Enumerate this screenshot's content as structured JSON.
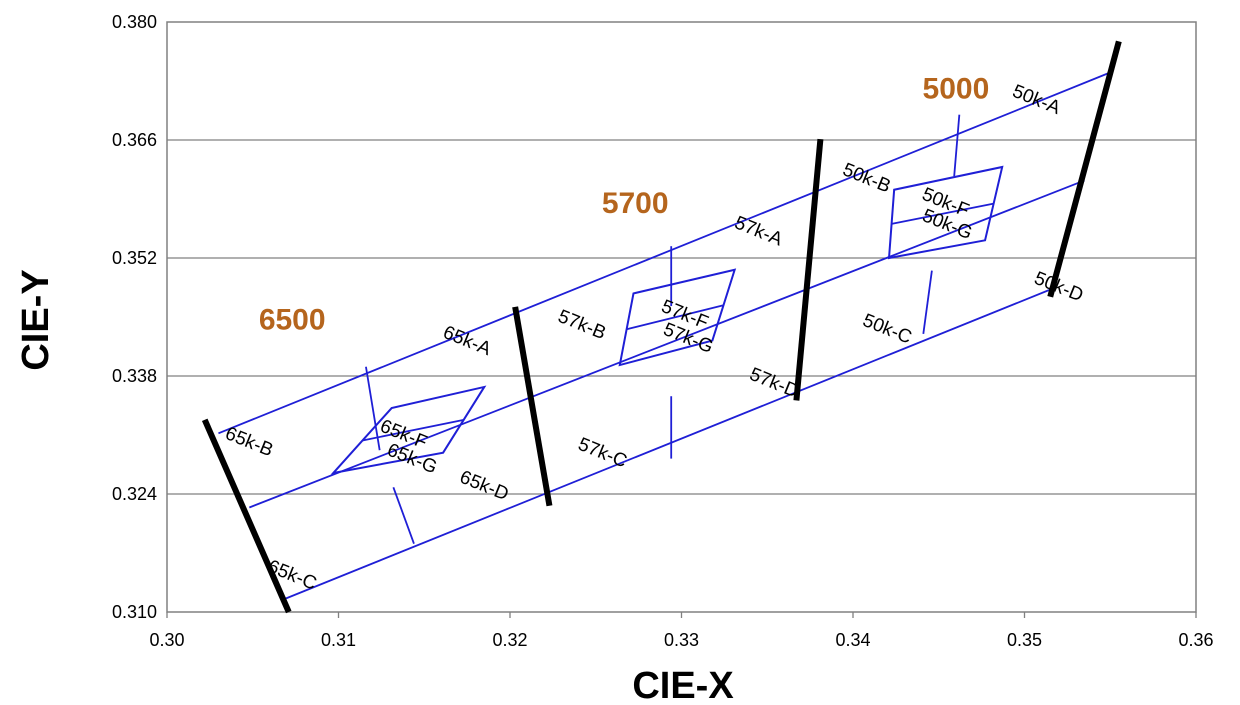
{
  "chart_data": {
    "type": "scatter",
    "xlabel": "CIE-X",
    "ylabel": "CIE-Y",
    "xlim": [
      0.3,
      0.36
    ],
    "ylim": [
      0.31,
      0.38
    ],
    "x_ticks": [
      "0.30",
      "0.31",
      "0.32",
      "0.33",
      "0.34",
      "0.35",
      "0.36"
    ],
    "y_ticks": [
      "0.380",
      "0.366",
      "0.352",
      "0.338",
      "0.324",
      "0.310"
    ],
    "grid": "horizontal",
    "colors": {
      "bins": "#1f1fd6",
      "boundaries": "#000000",
      "cct_labels": "#b5651d"
    },
    "cct_labels": [
      {
        "text": "6500",
        "x": 0.3073,
        "y": 0.3447
      },
      {
        "text": "5700",
        "x": 0.3273,
        "y": 0.3585
      },
      {
        "text": "5000",
        "x": 0.346,
        "y": 0.3721
      }
    ],
    "ansi_boundaries": [
      {
        "points": [
          [
            0.3022,
            0.3328
          ],
          [
            0.3071,
            0.31
          ]
        ]
      },
      {
        "points": [
          [
            0.3203,
            0.3462
          ],
          [
            0.3223,
            0.3226
          ]
        ]
      },
      {
        "points": [
          [
            0.3381,
            0.3661
          ],
          [
            0.3367,
            0.3351
          ]
        ]
      },
      {
        "points": [
          [
            0.3555,
            0.3777
          ],
          [
            0.3515,
            0.3474
          ]
        ]
      }
    ],
    "bin_lines": [
      {
        "points": [
          [
            0.303,
            0.3312
          ],
          [
            0.3551,
            0.3741
          ]
        ]
      },
      {
        "points": [
          [
            0.3048,
            0.3224
          ],
          [
            0.3535,
            0.3612
          ]
        ]
      },
      {
        "points": [
          [
            0.3068,
            0.3115
          ],
          [
            0.3518,
            0.3485
          ]
        ]
      },
      {
        "points": [
          [
            0.3116,
            0.3391
          ],
          [
            0.3124,
            0.3292
          ]
        ]
      },
      {
        "points": [
          [
            0.3132,
            0.3248
          ],
          [
            0.3144,
            0.3181
          ]
        ]
      },
      {
        "points": [
          [
            0.3294,
            0.3534
          ],
          [
            0.3294,
            0.3463
          ]
        ]
      },
      {
        "points": [
          [
            0.3294,
            0.3356
          ],
          [
            0.3294,
            0.3282
          ]
        ]
      },
      {
        "points": [
          [
            0.3462,
            0.369
          ],
          [
            0.3459,
            0.3617
          ]
        ]
      },
      {
        "points": [
          [
            0.3446,
            0.3505
          ],
          [
            0.3441,
            0.343
          ]
        ]
      }
    ],
    "center_boxes": [
      {
        "points": [
          [
            0.3097,
            0.3265
          ],
          [
            0.3131,
            0.3342
          ],
          [
            0.3185,
            0.3367
          ],
          [
            0.3161,
            0.3289
          ]
        ]
      },
      {
        "points": [
          [
            0.3264,
            0.3393
          ],
          [
            0.3272,
            0.3478
          ],
          [
            0.3331,
            0.3506
          ],
          [
            0.3318,
            0.3422
          ]
        ]
      },
      {
        "points": [
          [
            0.3421,
            0.352
          ],
          [
            0.3424,
            0.3601
          ],
          [
            0.3487,
            0.3628
          ],
          [
            0.3477,
            0.3541
          ]
        ]
      }
    ],
    "bin_labels": [
      {
        "text": "65k-A",
        "x": 0.3175,
        "y": 0.3422
      },
      {
        "text": "65k-B",
        "x": 0.3048,
        "y": 0.3302
      },
      {
        "text": "65k-C",
        "x": 0.3073,
        "y": 0.3144
      },
      {
        "text": "65k-D",
        "x": 0.3185,
        "y": 0.325
      },
      {
        "text": "65k-F",
        "x": 0.3138,
        "y": 0.3311
      },
      {
        "text": "65k-G",
        "x": 0.3143,
        "y": 0.3282
      },
      {
        "text": "57k-B",
        "x": 0.3242,
        "y": 0.3441
      },
      {
        "text": "57k-A",
        "x": 0.3345,
        "y": 0.3552
      },
      {
        "text": "57k-C",
        "x": 0.3254,
        "y": 0.3289
      },
      {
        "text": "57k-D",
        "x": 0.3354,
        "y": 0.3372
      },
      {
        "text": "57k-F",
        "x": 0.3302,
        "y": 0.3453
      },
      {
        "text": "57k-G",
        "x": 0.3304,
        "y": 0.3425
      },
      {
        "text": "50k-B",
        "x": 0.3408,
        "y": 0.3615
      },
      {
        "text": "50k-A",
        "x": 0.3507,
        "y": 0.3708
      },
      {
        "text": "50k-C",
        "x": 0.342,
        "y": 0.3436
      },
      {
        "text": "50k-D",
        "x": 0.352,
        "y": 0.3486
      },
      {
        "text": "50k-F",
        "x": 0.3454,
        "y": 0.3586
      },
      {
        "text": "50k-G",
        "x": 0.3455,
        "y": 0.356
      }
    ]
  }
}
